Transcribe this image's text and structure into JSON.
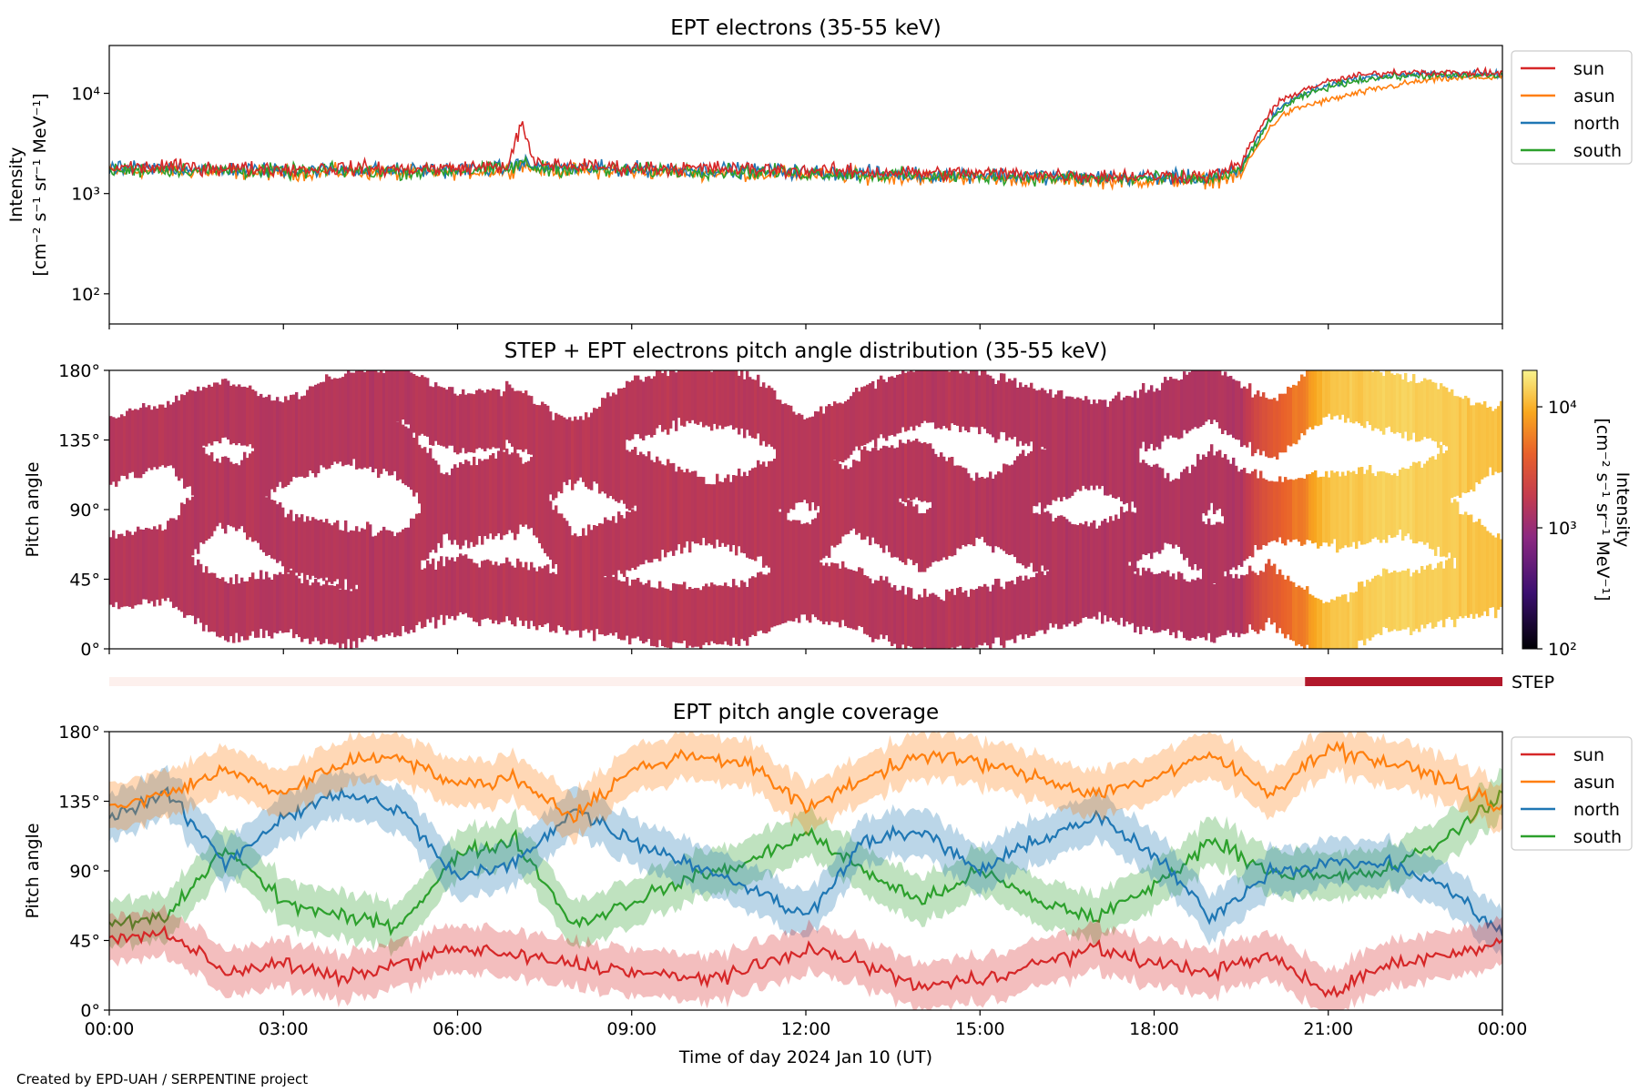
{
  "figure": {
    "credit": "Created by EPD-UAH / SERPENTINE project",
    "xlabel": "Time of day 2024 Jan 10 (UT)",
    "xticks": [
      "00:00",
      "03:00",
      "06:00",
      "09:00",
      "12:00",
      "15:00",
      "18:00",
      "21:00",
      "00:00"
    ],
    "colors": {
      "sun": "#d62728",
      "asun": "#ff7f0e",
      "north": "#1f77b4",
      "south": "#2ca02c",
      "step_bar": "#b2182b",
      "step_bar_empty": "#fdf0ed"
    }
  },
  "chart_data": [
    {
      "type": "line",
      "title": "EPT electrons (35-55 keV)",
      "ylabel": "Intensity",
      "yunit": "[cm⁻² s⁻¹ sr⁻¹ MeV⁻¹]",
      "yscale": "log",
      "ylim": [
        50,
        30000
      ],
      "xlim_hours": [
        0,
        24
      ],
      "ytick_labels": [
        "10²",
        "10³",
        "10⁴"
      ],
      "ytick_values": [
        100,
        1000,
        10000
      ],
      "legend_position": "outside-right-top",
      "x_hours": [
        0,
        1,
        2,
        3,
        4,
        5,
        6,
        6.9,
        7.1,
        7.3,
        8,
        9,
        10,
        11,
        12,
        13,
        14,
        15,
        16,
        17,
        18,
        19,
        19.5,
        19.8,
        20.2,
        20.6,
        21,
        21.5,
        22,
        22.5,
        23,
        24
      ],
      "series": [
        {
          "name": "sun",
          "values": [
            1800,
            1850,
            1800,
            1750,
            1800,
            1750,
            1800,
            1900,
            4800,
            2000,
            1900,
            1800,
            1800,
            1750,
            1700,
            1650,
            1600,
            1600,
            1550,
            1500,
            1500,
            1500,
            1900,
            4200,
            8500,
            11000,
            13000,
            15000,
            16000,
            16500,
            16000,
            16000
          ]
        },
        {
          "name": "asun",
          "values": [
            1650,
            1700,
            1650,
            1600,
            1650,
            1600,
            1650,
            1700,
            2000,
            1750,
            1700,
            1650,
            1650,
            1600,
            1550,
            1500,
            1450,
            1450,
            1400,
            1350,
            1350,
            1350,
            1500,
            3000,
            6000,
            7500,
            8500,
            10000,
            11500,
            13000,
            14000,
            14500
          ]
        },
        {
          "name": "north",
          "values": [
            1750,
            1800,
            1750,
            1700,
            1750,
            1700,
            1750,
            1800,
            2100,
            1850,
            1800,
            1750,
            1750,
            1700,
            1650,
            1600,
            1550,
            1550,
            1500,
            1450,
            1450,
            1450,
            1700,
            3600,
            7500,
            10000,
            12000,
            14000,
            15000,
            15500,
            15500,
            15500
          ]
        },
        {
          "name": "south",
          "values": [
            1700,
            1750,
            1700,
            1650,
            1700,
            1650,
            1700,
            1750,
            2050,
            1800,
            1750,
            1700,
            1700,
            1650,
            1600,
            1550,
            1500,
            1500,
            1450,
            1400,
            1400,
            1400,
            1650,
            3400,
            7000,
            9500,
            11500,
            13500,
            14500,
            15000,
            15000,
            15000
          ]
        }
      ]
    },
    {
      "type": "heatmap",
      "title": "STEP + EPT electrons pitch angle distribution (35-55 keV)",
      "ylabel": "Pitch angle",
      "ylim": [
        0,
        180
      ],
      "ytick_labels": [
        "0°",
        "45°",
        "90°",
        "135°",
        "180°"
      ],
      "ytick_values": [
        0,
        45,
        90,
        135,
        180
      ],
      "colorbar": {
        "label": "Intensity",
        "unit": "[cm⁻² s⁻¹ sr⁻¹ MeV⁻¹]",
        "scale": "log",
        "range": [
          100,
          20000
        ],
        "tick_labels": [
          "10²",
          "10³",
          "10⁴"
        ],
        "tick_values": [
          100,
          1000,
          10000
        ]
      },
      "x_hours": [
        0,
        2,
        4,
        6,
        8,
        10,
        12,
        14,
        16,
        18,
        19.5,
        20,
        20.6,
        21,
        22,
        23,
        24
      ],
      "intensity": [
        1500,
        1500,
        1500,
        1500,
        1600,
        1600,
        1550,
        1500,
        1450,
        1400,
        1400,
        3200,
        6000,
        12000,
        14000,
        13000,
        12000
      ]
    },
    {
      "type": "bar",
      "name": "STEP",
      "label": "STEP",
      "active_from_hours": 20.6,
      "active_to_hours": 24
    },
    {
      "type": "line",
      "title": "EPT pitch angle coverage",
      "ylabel": "Pitch angle",
      "ylim": [
        0,
        180
      ],
      "xlim_hours": [
        0,
        24
      ],
      "ytick_labels": [
        "0°",
        "45°",
        "90°",
        "135°",
        "180°"
      ],
      "ytick_values": [
        0,
        45,
        90,
        135,
        180
      ],
      "legend_position": "outside-right-top",
      "band_halfwidth_deg": 15,
      "x_hours": [
        0,
        1,
        2,
        3,
        4,
        5,
        6,
        7,
        8,
        9,
        10,
        11,
        12,
        13,
        14,
        15,
        16,
        17,
        18,
        19,
        20,
        21,
        22,
        23,
        24
      ],
      "series": [
        {
          "name": "sun",
          "values": [
            45,
            50,
            25,
            30,
            20,
            30,
            40,
            35,
            30,
            25,
            20,
            25,
            40,
            30,
            15,
            20,
            30,
            40,
            30,
            25,
            35,
            10,
            30,
            35,
            45
          ]
        },
        {
          "name": "asun",
          "values": [
            130,
            140,
            155,
            140,
            160,
            165,
            145,
            150,
            125,
            155,
            165,
            160,
            130,
            150,
            165,
            160,
            150,
            140,
            150,
            165,
            140,
            170,
            160,
            150,
            130
          ]
        },
        {
          "name": "north",
          "values": [
            125,
            140,
            95,
            125,
            140,
            130,
            85,
            95,
            130,
            110,
            95,
            80,
            60,
            110,
            115,
            90,
            110,
            125,
            100,
            60,
            90,
            95,
            95,
            80,
            50
          ]
        },
        {
          "name": "south",
          "values": [
            55,
            60,
            105,
            70,
            60,
            55,
            100,
            110,
            55,
            70,
            85,
            95,
            115,
            90,
            70,
            90,
            70,
            60,
            80,
            110,
            90,
            85,
            90,
            110,
            140
          ]
        }
      ]
    }
  ]
}
